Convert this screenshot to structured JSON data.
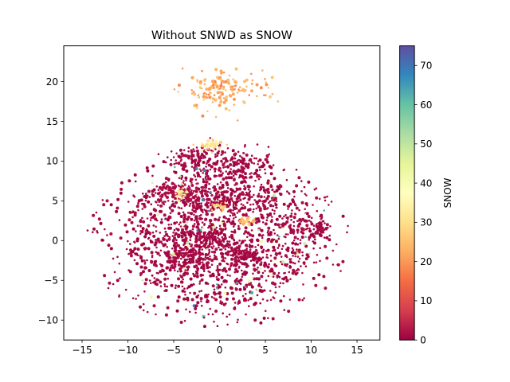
{
  "chart_data": {
    "type": "scatter",
    "title": "Without SNWD as SNOW",
    "xlabel": "",
    "ylabel": "",
    "xlim": [
      -17.0,
      17.5
    ],
    "ylim": [
      -12.5,
      24.5
    ],
    "xticks": [
      -15,
      -10,
      -5,
      0,
      5,
      10,
      15
    ],
    "yticks": [
      -10,
      -5,
      0,
      5,
      10,
      15,
      20
    ],
    "grid": false,
    "colorbar": {
      "label": "SNOW",
      "colormap": "Spectral",
      "range": [
        0,
        75
      ],
      "ticks": [
        0,
        10,
        20,
        30,
        40,
        50,
        60,
        70
      ],
      "stops": [
        "#9e0142",
        "#d53e4f",
        "#f46d43",
        "#fdae61",
        "#fee08b",
        "#ffffbf",
        "#e6f598",
        "#abdda4",
        "#66c2a5",
        "#3288bd",
        "#5e4fa2"
      ]
    },
    "clusters": [
      {
        "x": 0.0,
        "y": 0.5,
        "spread_x": 10.5,
        "spread_y": 8.5,
        "snow": 1,
        "points": 1100
      },
      {
        "x": -2.5,
        "y": 10.5,
        "spread_x": 3.5,
        "spread_y": 1.5,
        "snow": 1,
        "points": 120
      },
      {
        "x": 2.5,
        "y": 9.5,
        "spread_x": 3.0,
        "spread_y": 2.0,
        "snow": 1,
        "points": 120
      },
      {
        "x": -4.0,
        "y": 6.0,
        "spread_x": 3.0,
        "spread_y": 1.5,
        "snow": 2,
        "points": 110
      },
      {
        "x": 0.5,
        "y": 5.0,
        "spread_x": 3.5,
        "spread_y": 1.8,
        "snow": 1,
        "points": 140
      },
      {
        "x": -3.0,
        "y": -2.0,
        "spread_x": 3.0,
        "spread_y": 1.5,
        "snow": 1,
        "points": 140
      },
      {
        "x": 2.5,
        "y": -2.0,
        "spread_x": 2.5,
        "spread_y": 1.5,
        "snow": 1,
        "points": 100
      },
      {
        "x": -1.5,
        "y": 0.5,
        "spread_x": 4.0,
        "spread_y": 1.5,
        "snow": 1,
        "points": 120
      },
      {
        "x": 11.0,
        "y": 1.5,
        "spread_x": 0.8,
        "spread_y": 1.3,
        "snow": 1,
        "points": 50
      },
      {
        "x": -1.0,
        "y": 12.0,
        "spread_x": 1.2,
        "spread_y": 0.6,
        "snow": 30,
        "points": 40
      },
      {
        "x": -4.2,
        "y": 6.0,
        "spread_x": 0.8,
        "spread_y": 0.6,
        "snow": 30,
        "points": 25
      },
      {
        "x": 0.0,
        "y": 4.2,
        "spread_x": 0.8,
        "spread_y": 0.5,
        "snow": 28,
        "points": 25
      },
      {
        "x": 3.0,
        "y": 2.5,
        "spread_x": 0.8,
        "spread_y": 0.4,
        "snow": 25,
        "points": 20
      },
      {
        "x": 0.0,
        "y": 19.0,
        "spread_x": 4.5,
        "spread_y": 2.5,
        "snow": 22,
        "points": 160
      },
      {
        "x": 0.0,
        "y": 0.0,
        "spread_x": 12.5,
        "spread_y": 9.5,
        "snow": 45,
        "points": 50
      },
      {
        "x": 0.0,
        "y": 0.0,
        "spread_x": 13.5,
        "spread_y": 10.0,
        "snow": 65,
        "points": 20
      },
      {
        "x": 0.0,
        "y": 0.0,
        "spread_x": 14.5,
        "spread_y": 11.0,
        "snow": 1,
        "points": 500
      }
    ]
  }
}
